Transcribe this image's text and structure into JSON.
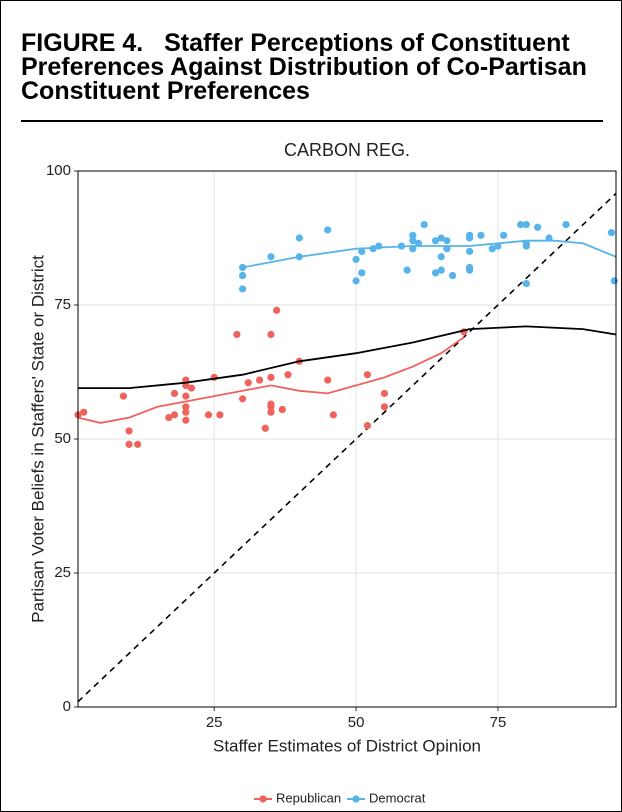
{
  "figure_label": "FIGURE 4.",
  "caption": "Staffer Perceptions of Constituent Preferences Against Distribution of Co-Partisan Constituent Preferences",
  "chart_data": {
    "type": "scatter",
    "title": "CARBON REG.",
    "x_label": "Staffer Estimates of District Opinion",
    "y_label": "Partisan Voter Beliefs in Staffers' State or District",
    "xlim": [
      1,
      95.8
    ],
    "ylim": [
      0,
      100
    ],
    "xticks": [
      25,
      50,
      75
    ],
    "yticks": [
      0,
      25,
      50,
      75,
      100
    ],
    "grid": true,
    "legend": "bottom",
    "series": [
      {
        "name": "Republican",
        "color": "#f0625c",
        "x": [
          2,
          1,
          9,
          10,
          10,
          11.5,
          17,
          18,
          18,
          20,
          20,
          20,
          20,
          20,
          20,
          21,
          24,
          25,
          26,
          29,
          30,
          31,
          33,
          34,
          35,
          35,
          35,
          35,
          35,
          36,
          37,
          38,
          40,
          45,
          46,
          52,
          52,
          55,
          55,
          69
        ],
        "values": [
          55,
          54.5,
          58,
          51.5,
          49,
          49,
          54,
          54.5,
          58.5,
          61,
          60,
          58,
          56,
          55,
          53.5,
          59.5,
          54.5,
          61.5,
          54.5,
          69.5,
          57.5,
          60.5,
          61,
          52,
          69.5,
          61.5,
          56,
          55,
          56.5,
          74,
          55.5,
          62,
          64.5,
          61,
          54.5,
          62,
          52.5,
          58.5,
          56,
          70
        ]
      },
      {
        "name": "Democrat",
        "color": "#56b4e9",
        "x": [
          30,
          30,
          30,
          35,
          40,
          40,
          45,
          50,
          50,
          51,
          51,
          53,
          54,
          58,
          59,
          60,
          60,
          60,
          61,
          62,
          64,
          64,
          65,
          65,
          65,
          66,
          66,
          67,
          70,
          70,
          70,
          70,
          70,
          72,
          74,
          75,
          76,
          79,
          80,
          80,
          80,
          80,
          82,
          84,
          87,
          95,
          95.5
        ],
        "values": [
          78,
          80.5,
          82,
          84,
          84,
          87.5,
          89,
          79.5,
          83.5,
          81,
          85,
          85.5,
          86,
          86,
          81.5,
          88,
          85.5,
          87,
          86.5,
          90,
          81,
          87,
          81.5,
          84,
          87.5,
          87,
          85.5,
          80.5,
          88,
          87.5,
          85,
          82,
          81.5,
          88,
          85.5,
          86,
          88,
          90,
          90,
          86,
          79,
          86.5,
          89.5,
          87.5,
          90,
          88.5,
          79.5
        ]
      }
    ],
    "fits": [
      {
        "color": "#f0625c",
        "x": [
          1,
          5,
          10,
          15,
          20,
          25,
          30,
          35,
          40,
          45,
          50,
          55,
          60,
          65,
          69
        ],
        "values": [
          54,
          53,
          54,
          56,
          57,
          58,
          59,
          60,
          59,
          58.5,
          60,
          61.5,
          63.5,
          66,
          69
        ]
      },
      {
        "color": "#56b4e9",
        "x": [
          30,
          35,
          40,
          50,
          60,
          70,
          80,
          85,
          90,
          95.8
        ],
        "values": [
          82,
          83,
          84,
          85.5,
          86,
          86,
          87,
          87,
          86.5,
          84
        ]
      },
      {
        "color": "#000000",
        "x": [
          1,
          10,
          20,
          30,
          40,
          50,
          60,
          70,
          80,
          90,
          95.8
        ],
        "values": [
          59.5,
          59.5,
          60.5,
          62,
          64.5,
          66,
          68,
          70.5,
          71,
          70.5,
          69.5
        ]
      }
    ]
  }
}
